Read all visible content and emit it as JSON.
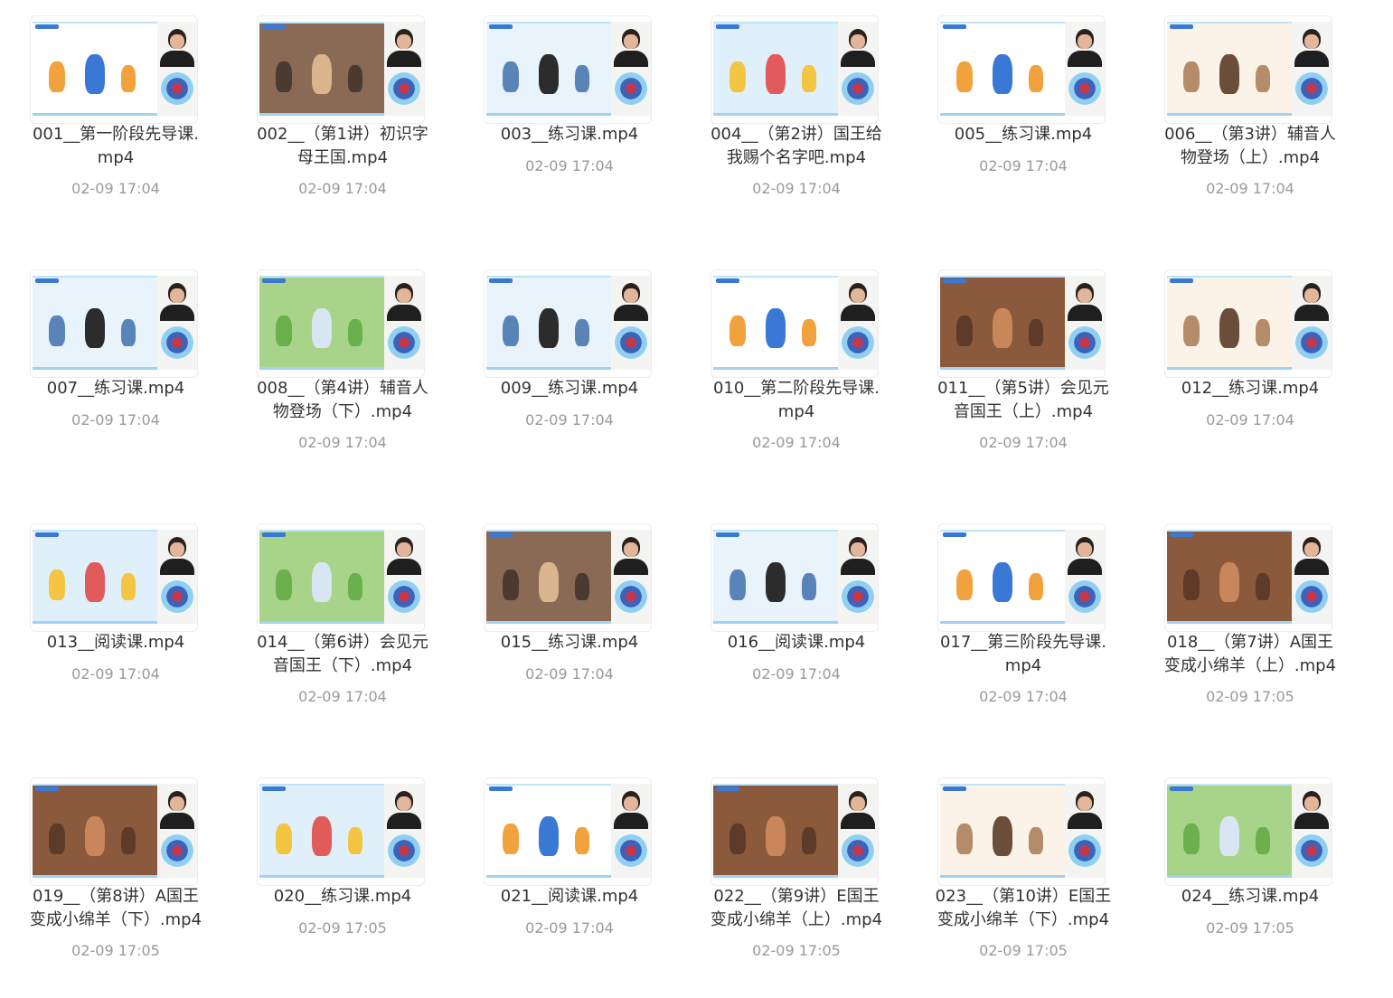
{
  "files": [
    {
      "name": "001__第一阶段先导课.mp4",
      "line1": "001__第一阶段先导课.",
      "line2": "mp4",
      "date": "02-09 17:04",
      "thumb": "a"
    },
    {
      "name": "002__（第1讲）初识字母王国.mp4",
      "line1": "002__（第1讲）初识字",
      "line2": "母王国.mp4",
      "date": "02-09 17:04",
      "thumb": "b"
    },
    {
      "name": "003__练习课.mp4",
      "line1": "003__练习课.mp4",
      "line2": "",
      "date": "02-09 17:04",
      "thumb": "c"
    },
    {
      "name": "004__（第2讲）国王给我赐个名字吧.mp4",
      "line1": "004__（第2讲）国王给",
      "line2": "我赐个名字吧.mp4",
      "date": "02-09 17:04",
      "thumb": "d"
    },
    {
      "name": "005__练习课.mp4",
      "line1": "005__练习课.mp4",
      "line2": "",
      "date": "02-09 17:04",
      "thumb": "a"
    },
    {
      "name": "006__（第3讲）辅音人物登场（上）.mp4",
      "line1": "006__（第3讲）辅音人",
      "line2": "物登场（上）.mp4",
      "date": "02-09 17:04",
      "thumb": "e"
    },
    {
      "name": "007__练习课.mp4",
      "line1": "007__练习课.mp4",
      "line2": "",
      "date": "02-09 17:04",
      "thumb": "c"
    },
    {
      "name": "008__（第4讲）辅音人物登场（下）.mp4",
      "line1": "008__（第4讲）辅音人",
      "line2": "物登场（下）.mp4",
      "date": "02-09 17:04",
      "thumb": "f"
    },
    {
      "name": "009__练习课.mp4",
      "line1": "009__练习课.mp4",
      "line2": "",
      "date": "02-09 17:04",
      "thumb": "c"
    },
    {
      "name": "010__第二阶段先导课.mp4",
      "line1": "010__第二阶段先导课.",
      "line2": "mp4",
      "date": "02-09 17:04",
      "thumb": "a"
    },
    {
      "name": "011__（第5讲）会见元音国王（上）.mp4",
      "line1": "011__（第5讲）会见元",
      "line2": "音国王（上）.mp4",
      "date": "02-09 17:04",
      "thumb": "g"
    },
    {
      "name": "012__练习课.mp4",
      "line1": "012__练习课.mp4",
      "line2": "",
      "date": "02-09 17:04",
      "thumb": "e"
    },
    {
      "name": "013__阅读课.mp4",
      "line1": "013__阅读课.mp4",
      "line2": "",
      "date": "02-09 17:04",
      "thumb": "d"
    },
    {
      "name": "014__（第6讲）会见元音国王（下）.mp4",
      "line1": "014__（第6讲）会见元",
      "line2": "音国王（下）.mp4",
      "date": "02-09 17:04",
      "thumb": "f"
    },
    {
      "name": "015__练习课.mp4",
      "line1": "015__练习课.mp4",
      "line2": "",
      "date": "02-09 17:04",
      "thumb": "b"
    },
    {
      "name": "016__阅读课.mp4",
      "line1": "016__阅读课.mp4",
      "line2": "",
      "date": "02-09 17:04",
      "thumb": "c"
    },
    {
      "name": "017__第三阶段先导课.mp4",
      "line1": "017__第三阶段先导课.",
      "line2": "mp4",
      "date": "02-09 17:04",
      "thumb": "a"
    },
    {
      "name": "018__（第7讲）A国王变成小绵羊（上）.mp4",
      "line1": "018__（第7讲）A国王",
      "line2": "变成小绵羊（上）.mp4",
      "date": "02-09 17:05",
      "thumb": "g"
    },
    {
      "name": "019__（第8讲）A国王变成小绵羊（下）.mp4",
      "line1": "019__（第8讲）A国王",
      "line2": "变成小绵羊（下）.mp4",
      "date": "02-09 17:05",
      "thumb": "g"
    },
    {
      "name": "020__练习课.mp4",
      "line1": "020__练习课.mp4",
      "line2": "",
      "date": "02-09 17:05",
      "thumb": "d"
    },
    {
      "name": "021__阅读课.mp4",
      "line1": "021__阅读课.mp4",
      "line2": "",
      "date": "02-09 17:04",
      "thumb": "a"
    },
    {
      "name": "022__（第9讲）E国王变成小绵羊（上）.mp4",
      "line1": "022__（第9讲）E国王",
      "line2": "变成小绵羊（上）.mp4",
      "date": "02-09 17:05",
      "thumb": "g"
    },
    {
      "name": "023__（第10讲）E国王变成小绵羊（下）.mp4",
      "line1": "023__（第10讲）E国王",
      "line2": "变成小绵羊（下）.mp4",
      "date": "02-09 17:05",
      "thumb": "e"
    },
    {
      "name": "024__练习课.mp4",
      "line1": "024__练习课.mp4",
      "line2": "",
      "date": "02-09 17:05",
      "thumb": "f"
    }
  ],
  "thumb_styles": {
    "a": {
      "bg": "#ffffff",
      "accent": "#f2a23c",
      "accent2": "#3a78d6"
    },
    "b": {
      "bg": "#8a6a55",
      "accent": "#4b3a30",
      "accent2": "#d9b48c"
    },
    "c": {
      "bg": "#e8f3fb",
      "accent": "#5a84b8",
      "accent2": "#2c2c2c"
    },
    "d": {
      "bg": "#dff0fb",
      "accent": "#f4c542",
      "accent2": "#e15b5b"
    },
    "e": {
      "bg": "#fbf3e8",
      "accent": "#b48c6a",
      "accent2": "#6b4e3a"
    },
    "f": {
      "bg": "#a8d48a",
      "accent": "#6ab04c",
      "accent2": "#d8e6f3"
    },
    "g": {
      "bg": "#8b5a3c",
      "accent": "#5e3a28",
      "accent2": "#c9865a"
    }
  }
}
